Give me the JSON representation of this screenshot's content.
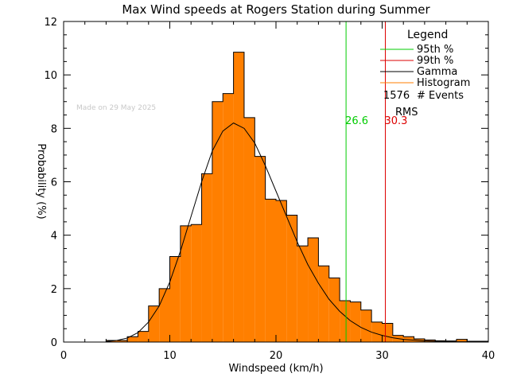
{
  "chart_data": {
    "type": "bar",
    "title": "Max Wind speeds at Rogers Station during Summer",
    "xlabel": "Windspeed (km/h)",
    "ylabel": "Probability (%)",
    "xlim": [
      0,
      40
    ],
    "ylim": [
      0,
      12
    ],
    "x_ticks": [
      0,
      10,
      20,
      30,
      40
    ],
    "y_ticks": [
      0,
      2,
      4,
      6,
      8,
      10,
      12
    ],
    "grid": false,
    "legend_placement": "top-right",
    "watermark": "Made on 29 May 2025",
    "colors": {
      "histogram": "#ff7f00",
      "gamma": "#000000",
      "p95": "#00cc00",
      "p99": "#dd0000",
      "watermark": "#c8c8c8"
    },
    "legend": {
      "title": "Legend",
      "items": [
        {
          "label": "95th %",
          "color": "#00cc00"
        },
        {
          "label": "99th %",
          "color": "#dd0000"
        },
        {
          "label": "Gamma",
          "color": "#000000"
        },
        {
          "label": "Histogram",
          "color": "#ff7f00"
        }
      ],
      "events_count": "1576",
      "events_label": "# Events",
      "rms_label": "RMS"
    },
    "percentiles": [
      {
        "name": "95th %",
        "x": 26.6,
        "label": "26.6",
        "color": "#00cc00"
      },
      {
        "name": "99th %",
        "x": 30.3,
        "label": "30.3",
        "color": "#dd0000"
      }
    ],
    "histogram": {
      "bin_width": 1,
      "bin_starts": [
        4,
        5,
        6,
        7,
        8,
        9,
        10,
        11,
        12,
        13,
        14,
        15,
        16,
        17,
        18,
        19,
        20,
        21,
        22,
        23,
        24,
        25,
        26,
        27,
        28,
        29,
        30,
        31,
        32,
        33,
        34,
        35,
        36,
        37,
        38,
        39
      ],
      "values": [
        0.06,
        0.06,
        0.2,
        0.4,
        1.35,
        2.0,
        3.2,
        4.35,
        4.4,
        6.3,
        9.0,
        9.3,
        10.85,
        8.4,
        6.95,
        5.35,
        5.3,
        4.75,
        3.6,
        3.9,
        2.85,
        2.4,
        1.55,
        1.5,
        1.2,
        0.75,
        0.7,
        0.25,
        0.2,
        0.12,
        0.08,
        0.05,
        0.04,
        0.1,
        0.03,
        0.03
      ]
    },
    "gamma_curve": {
      "x": [
        4,
        5,
        6,
        7,
        8,
        9,
        10,
        11,
        12,
        13,
        14,
        15,
        16,
        17,
        18,
        19,
        20,
        21,
        22,
        23,
        24,
        25,
        26,
        27,
        28,
        29,
        30,
        31,
        32,
        33,
        34,
        35,
        36,
        37,
        38,
        39,
        40
      ],
      "y": [
        0.02,
        0.06,
        0.15,
        0.35,
        0.75,
        1.35,
        2.25,
        3.4,
        4.7,
        6.0,
        7.15,
        7.9,
        8.2,
        8.0,
        7.45,
        6.6,
        5.65,
        4.7,
        3.75,
        2.9,
        2.2,
        1.6,
        1.15,
        0.8,
        0.55,
        0.37,
        0.25,
        0.16,
        0.1,
        0.07,
        0.04,
        0.03,
        0.02,
        0.01,
        0.01,
        0.005,
        0.003
      ]
    }
  }
}
